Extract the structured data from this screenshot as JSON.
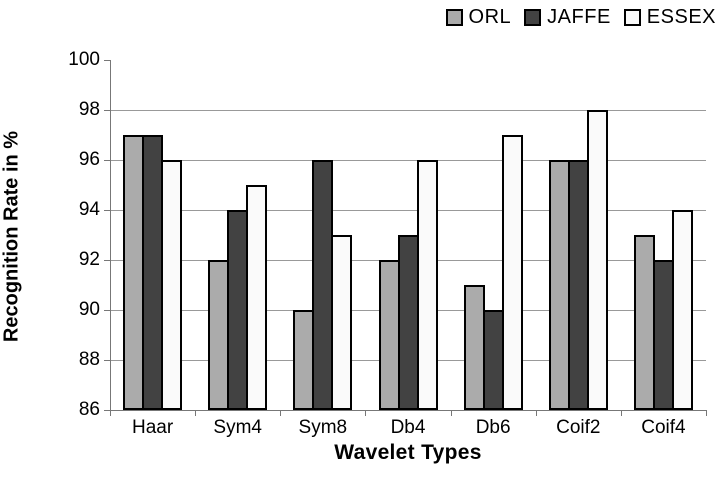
{
  "chart_data": {
    "type": "bar",
    "title": "",
    "xlabel": "Wavelet Types",
    "ylabel": "Recognition Rate in %",
    "categories": [
      "Haar",
      "Sym4",
      "Sym8",
      "Db4",
      "Db6",
      "Coif2",
      "Coif4"
    ],
    "series": [
      {
        "name": "ORL",
        "color": "#ababab",
        "values": [
          97,
          92,
          90,
          92,
          91,
          96,
          93
        ]
      },
      {
        "name": "JAFFE",
        "color": "#424242",
        "values": [
          97,
          94,
          96,
          93,
          90,
          96,
          92
        ]
      },
      {
        "name": "ESSEX",
        "color": "#fafafa",
        "values": [
          96,
          95,
          93,
          96,
          97,
          98,
          94
        ]
      }
    ],
    "ylim": [
      86,
      100
    ],
    "yticks": [
      86,
      88,
      90,
      92,
      94,
      96,
      98,
      100
    ],
    "grid": true,
    "legend_position": "top-right",
    "bar_border_color": "#000000",
    "gridline_color": "#999999",
    "axis_color": "#777777",
    "text_color": "#000000",
    "background_color": "#ffffff"
  }
}
